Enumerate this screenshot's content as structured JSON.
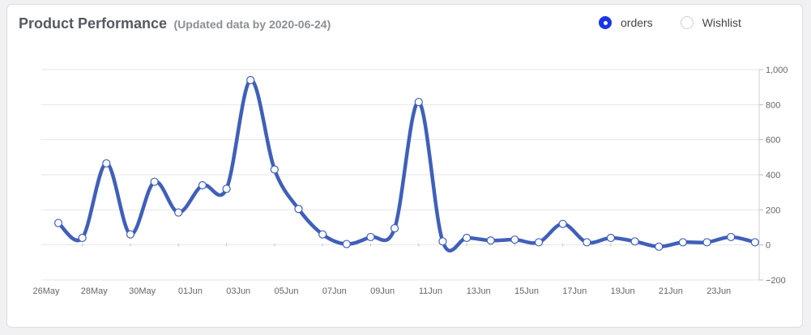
{
  "header": {
    "title": "Product Performance",
    "subtitle": "(Updated data by 2020-06-24)"
  },
  "legend": [
    {
      "label": "orders",
      "selected": true
    },
    {
      "label": "Wishlist",
      "selected": false
    }
  ],
  "colors": {
    "series": "#3f5fb9",
    "radio_active": "#1a35e6",
    "grid": "#e6e6e6"
  },
  "chart_data": {
    "type": "line",
    "x": [
      "26May",
      "27May",
      "28May",
      "29May",
      "30May",
      "31May",
      "01Jun",
      "02Jun",
      "03Jun",
      "04Jun",
      "05Jun",
      "06Jun",
      "07Jun",
      "08Jun",
      "09Jun",
      "10Jun",
      "11Jun",
      "12Jun",
      "13Jun",
      "14Jun",
      "15Jun",
      "16Jun",
      "17Jun",
      "18Jun",
      "19Jun",
      "20Jun",
      "21Jun",
      "22Jun",
      "23Jun",
      "24Jun"
    ],
    "x_tick_labels": [
      "26May",
      "28May",
      "30May",
      "01Jun",
      "03Jun",
      "05Jun",
      "07Jun",
      "09Jun",
      "11Jun",
      "13Jun",
      "15Jun",
      "17Jun",
      "19Jun",
      "21Jun",
      "23Jun"
    ],
    "series": [
      {
        "name": "orders",
        "values": [
          125,
          40,
          465,
          60,
          360,
          185,
          340,
          320,
          940,
          430,
          205,
          60,
          5,
          45,
          95,
          815,
          20,
          40,
          25,
          30,
          15,
          120,
          15,
          40,
          20,
          -10,
          15,
          15,
          45,
          15
        ]
      }
    ],
    "y_ticks": [
      "1,000",
      "800",
      "600",
      "400",
      "200",
      "0",
      "−200"
    ],
    "ylim": [
      -200,
      1000
    ],
    "grid": true,
    "legend_position": "top-right"
  }
}
